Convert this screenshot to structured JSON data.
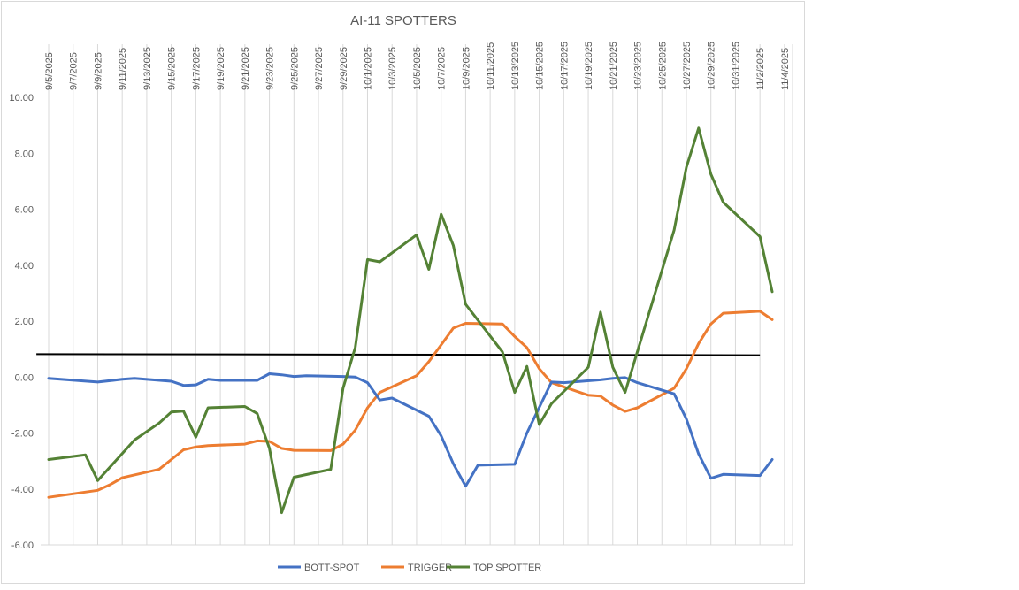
{
  "chart_data": {
    "type": "line",
    "title": "AI-11 SPOTTERS",
    "xlabel": "",
    "ylabel": "",
    "ylim": [
      -6,
      10
    ],
    "y_ticks": [
      "-6.00",
      "-4.00",
      "-2.00",
      "0.00",
      "2.00",
      "4.00",
      "6.00",
      "8.00",
      "10.00"
    ],
    "x_tick_labels": [
      "9/5/2025",
      "9/7/2025",
      "9/9/2025",
      "9/11/2025",
      "9/13/2025",
      "9/15/2025",
      "9/17/2025",
      "9/19/2025",
      "9/21/2025",
      "9/23/2025",
      "9/25/2025",
      "9/27/2025",
      "9/29/2025",
      "10/1/2025",
      "10/3/2025",
      "10/5/2025",
      "10/7/2025",
      "10/9/2025",
      "10/11/2025",
      "10/13/2025",
      "10/15/2025",
      "10/17/2025",
      "10/19/2025",
      "10/21/2025",
      "10/23/2025",
      "10/25/2025",
      "10/27/2025",
      "10/29/2025",
      "10/31/2025",
      "11/2/2025",
      "11/4/2025"
    ],
    "x_label_position": "top",
    "grid": "vertical",
    "legend_position": "bottom",
    "series": [
      {
        "name": "BOTT-SPOT",
        "color": "#4472C4",
        "points": [
          [
            "9/5/2025",
            -0.05
          ],
          [
            "9/9/2025",
            -0.18
          ],
          [
            "9/11/2025",
            -0.08
          ],
          [
            "9/12/2025",
            -0.05
          ],
          [
            "9/15/2025",
            -0.15
          ],
          [
            "9/16/2025",
            -0.3
          ],
          [
            "9/17/2025",
            -0.28
          ],
          [
            "9/18/2025",
            -0.08
          ],
          [
            "9/19/2025",
            -0.12
          ],
          [
            "9/22/2025",
            -0.12
          ],
          [
            "9/23/2025",
            0.12
          ],
          [
            "9/24/2025",
            0.08
          ],
          [
            "9/25/2025",
            0.02
          ],
          [
            "9/26/2025",
            0.05
          ],
          [
            "9/29/2025",
            0.02
          ],
          [
            "9/30/2025",
            0.0
          ],
          [
            "10/1/2025",
            -0.2
          ],
          [
            "10/2/2025",
            -0.82
          ],
          [
            "10/3/2025",
            -0.75
          ],
          [
            "10/6/2025",
            -1.4
          ],
          [
            "10/7/2025",
            -2.1
          ],
          [
            "10/8/2025",
            -3.1
          ],
          [
            "10/9/2025",
            -3.9
          ],
          [
            "10/10/2025",
            -3.15
          ],
          [
            "10/13/2025",
            -3.12
          ],
          [
            "10/14/2025",
            -2.0
          ],
          [
            "10/16/2025",
            -0.18
          ],
          [
            "10/17/2025",
            -0.2
          ],
          [
            "10/20/2025",
            -0.1
          ],
          [
            "10/21/2025",
            -0.05
          ],
          [
            "10/22/2025",
            -0.02
          ],
          [
            "10/23/2025",
            -0.2
          ],
          [
            "10/26/2025",
            -0.6
          ],
          [
            "10/27/2025",
            -1.5
          ],
          [
            "10/28/2025",
            -2.75
          ],
          [
            "10/29/2025",
            -3.62
          ],
          [
            "10/30/2025",
            -3.48
          ],
          [
            "11/2/2025",
            -3.52
          ],
          [
            "11/3/2025",
            -2.95
          ]
        ]
      },
      {
        "name": "TRIGGER",
        "color": "#ED7D31",
        "points": [
          [
            "9/5/2025",
            -4.3
          ],
          [
            "9/9/2025",
            -4.05
          ],
          [
            "9/10/2025",
            -3.85
          ],
          [
            "9/11/2025",
            -3.6
          ],
          [
            "9/14/2025",
            -3.3
          ],
          [
            "9/15/2025",
            -2.95
          ],
          [
            "9/16/2025",
            -2.6
          ],
          [
            "9/17/2025",
            -2.5
          ],
          [
            "9/18/2025",
            -2.45
          ],
          [
            "9/21/2025",
            -2.4
          ],
          [
            "9/22/2025",
            -2.28
          ],
          [
            "9/23/2025",
            -2.3
          ],
          [
            "9/24/2025",
            -2.55
          ],
          [
            "9/25/2025",
            -2.62
          ],
          [
            "9/28/2025",
            -2.63
          ],
          [
            "9/29/2025",
            -2.4
          ],
          [
            "9/30/2025",
            -1.9
          ],
          [
            "10/1/2025",
            -1.1
          ],
          [
            "10/2/2025",
            -0.55
          ],
          [
            "10/5/2025",
            0.05
          ],
          [
            "10/6/2025",
            0.55
          ],
          [
            "10/7/2025",
            1.15
          ],
          [
            "10/8/2025",
            1.75
          ],
          [
            "10/9/2025",
            1.92
          ],
          [
            "10/12/2025",
            1.9
          ],
          [
            "10/13/2025",
            1.45
          ],
          [
            "10/14/2025",
            1.05
          ],
          [
            "10/15/2025",
            0.3
          ],
          [
            "10/16/2025",
            -0.2
          ],
          [
            "10/19/2025",
            -0.65
          ],
          [
            "10/20/2025",
            -0.68
          ],
          [
            "10/21/2025",
            -1.0
          ],
          [
            "10/22/2025",
            -1.23
          ],
          [
            "10/23/2025",
            -1.1
          ],
          [
            "10/26/2025",
            -0.4
          ],
          [
            "10/27/2025",
            0.3
          ],
          [
            "10/28/2025",
            1.2
          ],
          [
            "10/29/2025",
            1.9
          ],
          [
            "10/30/2025",
            2.28
          ],
          [
            "11/2/2025",
            2.35
          ],
          [
            "11/3/2025",
            2.05
          ]
        ]
      },
      {
        "name": "TOP SPOTTER",
        "color": "#548235",
        "points": [
          [
            "9/5/2025",
            -2.95
          ],
          [
            "9/8/2025",
            -2.78
          ],
          [
            "9/9/2025",
            -3.7
          ],
          [
            "9/12/2025",
            -2.25
          ],
          [
            "9/13/2025",
            -1.95
          ],
          [
            "9/14/2025",
            -1.65
          ],
          [
            "9/15/2025",
            -1.25
          ],
          [
            "9/16/2025",
            -1.22
          ],
          [
            "9/17/2025",
            -2.15
          ],
          [
            "9/18/2025",
            -1.1
          ],
          [
            "9/21/2025",
            -1.05
          ],
          [
            "9/22/2025",
            -1.3
          ],
          [
            "9/23/2025",
            -2.55
          ],
          [
            "9/24/2025",
            -4.85
          ],
          [
            "9/25/2025",
            -3.58
          ],
          [
            "9/28/2025",
            -3.3
          ],
          [
            "9/29/2025",
            -0.4
          ],
          [
            "9/30/2025",
            1.05
          ],
          [
            "10/1/2025",
            4.2
          ],
          [
            "10/2/2025",
            4.12
          ],
          [
            "10/5/2025",
            5.08
          ],
          [
            "10/6/2025",
            3.85
          ],
          [
            "10/7/2025",
            5.82
          ],
          [
            "10/8/2025",
            4.7
          ],
          [
            "10/9/2025",
            2.6
          ],
          [
            "10/12/2025",
            0.9
          ],
          [
            "10/13/2025",
            -0.55
          ],
          [
            "10/14/2025",
            0.38
          ],
          [
            "10/15/2025",
            -1.7
          ],
          [
            "10/16/2025",
            -0.95
          ],
          [
            "10/19/2025",
            0.35
          ],
          [
            "10/20/2025",
            2.32
          ],
          [
            "10/21/2025",
            0.35
          ],
          [
            "10/22/2025",
            -0.55
          ],
          [
            "10/26/2025",
            5.25
          ],
          [
            "10/27/2025",
            7.5
          ],
          [
            "10/28/2025",
            8.9
          ],
          [
            "10/29/2025",
            7.25
          ],
          [
            "10/30/2025",
            6.25
          ],
          [
            "11/2/2025",
            5.02
          ],
          [
            "11/3/2025",
            3.05
          ]
        ]
      }
    ],
    "reference_line": {
      "color": "#000000",
      "start": [
        "9/4/2025",
        0.82
      ],
      "end": [
        "11/2/2025",
        0.78
      ]
    }
  }
}
